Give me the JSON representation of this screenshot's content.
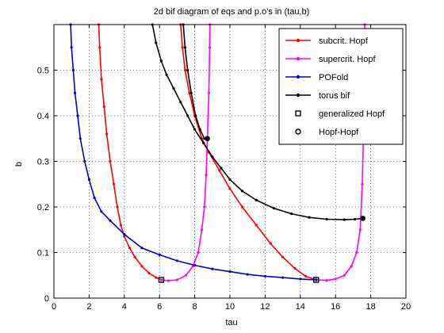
{
  "chart_data": {
    "type": "line",
    "title": "2d bif diagram of eqs and p.o's in (tau,b)",
    "xlabel": "tau",
    "ylabel": "b",
    "xlim": [
      0,
      20
    ],
    "ylim": [
      0,
      0.6
    ],
    "xticks": [
      "0",
      "2",
      "4",
      "6",
      "8",
      "10",
      "12",
      "14",
      "16",
      "18",
      "20"
    ],
    "yticks": [
      "0",
      "0.1",
      "0.2",
      "0.3",
      "0.4",
      "0.5"
    ],
    "grid": true,
    "legend_position": "top-right",
    "series": [
      {
        "name": "subcrit. Hopf",
        "color": "#ff0000",
        "marker": "dot",
        "segments": [
          [
            [
              2.55,
              0.6
            ],
            [
              2.6,
              0.55
            ],
            [
              2.7,
              0.48
            ],
            [
              2.85,
              0.42
            ],
            [
              3.0,
              0.36
            ],
            [
              3.2,
              0.3
            ],
            [
              3.4,
              0.25
            ],
            [
              3.6,
              0.2
            ],
            [
              3.8,
              0.16
            ],
            [
              4.0,
              0.135
            ],
            [
              4.3,
              0.11
            ],
            [
              4.6,
              0.09
            ],
            [
              5.0,
              0.07
            ],
            [
              5.4,
              0.055
            ],
            [
              5.8,
              0.045
            ],
            [
              6.1,
              0.04
            ]
          ],
          [
            [
              7.2,
              0.6
            ],
            [
              7.3,
              0.55
            ],
            [
              7.45,
              0.5
            ],
            [
              7.7,
              0.45
            ],
            [
              8.0,
              0.4
            ],
            [
              8.4,
              0.35
            ],
            [
              8.8,
              0.32
            ],
            [
              9.4,
              0.28
            ],
            [
              10.0,
              0.24
            ],
            [
              10.7,
              0.2
            ],
            [
              11.5,
              0.16
            ],
            [
              12.3,
              0.12
            ],
            [
              13.0,
              0.09
            ],
            [
              13.7,
              0.065
            ],
            [
              14.3,
              0.048
            ],
            [
              14.9,
              0.04
            ]
          ]
        ]
      },
      {
        "name": "supercrit. Hopf",
        "color": "#ff00ff",
        "marker": "dot",
        "segments": [
          [
            [
              6.1,
              0.04
            ],
            [
              6.5,
              0.038
            ],
            [
              7.0,
              0.04
            ],
            [
              7.5,
              0.05
            ],
            [
              7.9,
              0.07
            ],
            [
              8.2,
              0.1
            ],
            [
              8.4,
              0.15
            ],
            [
              8.55,
              0.2
            ],
            [
              8.65,
              0.27
            ],
            [
              8.72,
              0.35
            ],
            [
              8.8,
              0.45
            ],
            [
              8.85,
              0.55
            ],
            [
              8.87,
              0.6
            ]
          ],
          [
            [
              14.9,
              0.04
            ],
            [
              15.5,
              0.039
            ],
            [
              16.0,
              0.042
            ],
            [
              16.5,
              0.05
            ],
            [
              16.9,
              0.07
            ],
            [
              17.2,
              0.1
            ],
            [
              17.4,
              0.15
            ],
            [
              17.52,
              0.25
            ],
            [
              17.58,
              0.35
            ],
            [
              17.62,
              0.45
            ],
            [
              17.65,
              0.55
            ],
            [
              17.66,
              0.6
            ]
          ]
        ]
      },
      {
        "name": "POFold",
        "color": "#0000cc",
        "marker": "dot",
        "segments": [
          [
            [
              0.95,
              0.6
            ],
            [
              1.0,
              0.55
            ],
            [
              1.1,
              0.5
            ],
            [
              1.2,
              0.45
            ],
            [
              1.35,
              0.4
            ],
            [
              1.5,
              0.35
            ],
            [
              1.75,
              0.3
            ],
            [
              2.0,
              0.26
            ],
            [
              2.3,
              0.22
            ],
            [
              2.7,
              0.19
            ],
            [
              3.2,
              0.17
            ],
            [
              4.0,
              0.14
            ],
            [
              5.0,
              0.11
            ],
            [
              6.0,
              0.095
            ],
            [
              7.0,
              0.082
            ],
            [
              8.0,
              0.072
            ],
            [
              9.0,
              0.064
            ],
            [
              10.0,
              0.058
            ],
            [
              11.0,
              0.052
            ],
            [
              12.0,
              0.048
            ],
            [
              13.0,
              0.045
            ],
            [
              14.0,
              0.042
            ],
            [
              14.9,
              0.04
            ]
          ]
        ]
      },
      {
        "name": "torus bif",
        "color": "#000000",
        "marker": "dot",
        "segments": [
          [
            [
              5.6,
              0.6
            ],
            [
              5.8,
              0.56
            ],
            [
              6.1,
              0.52
            ],
            [
              6.4,
              0.49
            ],
            [
              6.8,
              0.46
            ],
            [
              7.2,
              0.43
            ],
            [
              7.6,
              0.4
            ],
            [
              8.0,
              0.37
            ],
            [
              8.5,
              0.34
            ],
            [
              9.0,
              0.31
            ],
            [
              9.5,
              0.285
            ],
            [
              10.0,
              0.26
            ],
            [
              10.7,
              0.235
            ],
            [
              11.5,
              0.215
            ],
            [
              12.5,
              0.197
            ],
            [
              13.5,
              0.185
            ],
            [
              14.5,
              0.177
            ],
            [
              15.5,
              0.173
            ],
            [
              16.5,
              0.172
            ],
            [
              17.1,
              0.173
            ],
            [
              17.55,
              0.175
            ]
          ],
          [
            [
              7.35,
              0.6
            ],
            [
              7.45,
              0.55
            ],
            [
              7.6,
              0.5
            ],
            [
              7.8,
              0.45
            ],
            [
              8.05,
              0.4
            ],
            [
              8.3,
              0.37
            ],
            [
              8.55,
              0.35
            ],
            [
              8.72,
              0.35
            ]
          ]
        ]
      }
    ],
    "special_points": [
      {
        "name": "generalized Hopf",
        "marker": "square",
        "points": [
          [
            6.1,
            0.04
          ],
          [
            14.9,
            0.04
          ]
        ]
      },
      {
        "name": "Hopf-Hopf",
        "marker": "circle",
        "points": [
          [
            8.72,
            0.35
          ],
          [
            17.55,
            0.175
          ]
        ]
      }
    ]
  }
}
